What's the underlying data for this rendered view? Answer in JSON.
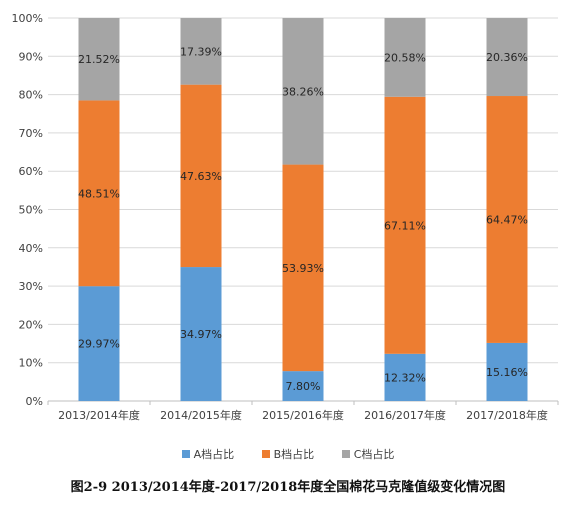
{
  "chart_data": {
    "type": "bar",
    "stacked": true,
    "normalized": true,
    "categories": [
      "2013/2014年度",
      "2014/2015年度",
      "2015/2016年度",
      "2016/2017年度",
      "2017/2018年度"
    ],
    "series": [
      {
        "name": "A档占比",
        "color": "#5b9bd5",
        "values": [
          29.97,
          34.97,
          7.8,
          12.32,
          15.16
        ],
        "labels": [
          "29.97%",
          "34.97%",
          "7.80%",
          "12.32%",
          "15.16%"
        ]
      },
      {
        "name": "B档占比",
        "color": "#ed7d31",
        "values": [
          48.51,
          47.63,
          53.93,
          67.11,
          64.47
        ],
        "labels": [
          "48.51%",
          "47.63%",
          "53.93%",
          "67.11%",
          "64.47%"
        ]
      },
      {
        "name": "C档占比",
        "color": "#a5a5a5",
        "values": [
          21.52,
          17.39,
          38.26,
          20.58,
          20.36
        ],
        "labels": [
          "21.52%",
          "17.39%",
          "38.26%",
          "20.58%",
          "20.36%"
        ]
      }
    ],
    "ylim": [
      0,
      100
    ],
    "yticks": [
      "0%",
      "10%",
      "20%",
      "30%",
      "40%",
      "50%",
      "60%",
      "70%",
      "80%",
      "90%",
      "100%"
    ],
    "grid": true,
    "legend_position": "bottom",
    "caption": "图2-9 2013/2014年度-2017/2018年度全国棉花马克隆值级变化情况图"
  }
}
